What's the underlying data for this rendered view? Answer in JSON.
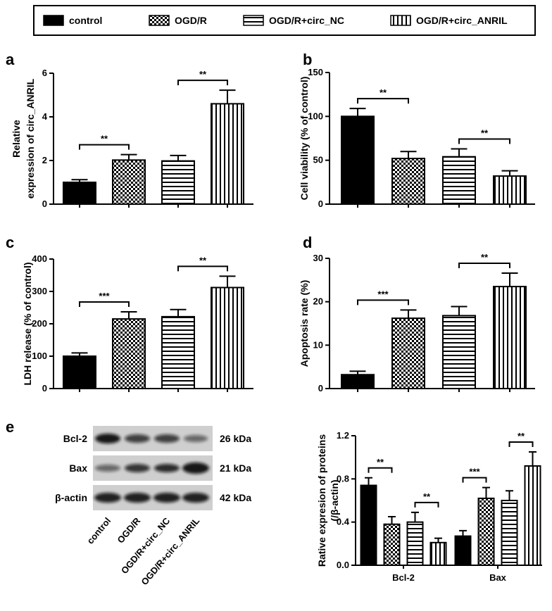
{
  "legend": [
    {
      "name": "control",
      "pattern": "solid"
    },
    {
      "name": "OGD/R",
      "pattern": "checker"
    },
    {
      "name": "OGD/R+circ_NC",
      "pattern": "hstripe"
    },
    {
      "name": "OGD/R+circ_ANRIL",
      "pattern": "vstripe"
    }
  ],
  "chart_data": [
    {
      "type": "bar",
      "panel": "a",
      "ylabel": [
        "Relative",
        "expression of circ_ANRIL"
      ],
      "values": [
        1.0,
        2.02,
        1.98,
        4.6
      ],
      "errors": [
        0.12,
        0.25,
        0.25,
        0.62
      ],
      "ylim": [
        0,
        6
      ],
      "yticks": [
        0,
        2,
        4,
        6
      ],
      "brackets": [
        {
          "from": 0,
          "to": 1,
          "label": "**"
        },
        {
          "from": 2,
          "to": 3,
          "label": "**"
        }
      ]
    },
    {
      "type": "bar",
      "panel": "b",
      "ylabel": [
        "Cell viability (% of control)"
      ],
      "values": [
        100,
        52,
        54,
        32
      ],
      "errors": [
        9,
        8,
        9,
        6
      ],
      "ylim": [
        0,
        150
      ],
      "yticks": [
        0,
        50,
        100,
        150
      ],
      "brackets": [
        {
          "from": 0,
          "to": 1,
          "label": "**"
        },
        {
          "from": 2,
          "to": 3,
          "label": "**"
        }
      ]
    },
    {
      "type": "bar",
      "panel": "c",
      "ylabel": [
        "LDH release (% of control)"
      ],
      "values": [
        100,
        215,
        222,
        312
      ],
      "errors": [
        10,
        22,
        22,
        35
      ],
      "ylim": [
        0,
        400
      ],
      "yticks": [
        0,
        100,
        200,
        300,
        400
      ],
      "brackets": [
        {
          "from": 0,
          "to": 1,
          "label": "***"
        },
        {
          "from": 2,
          "to": 3,
          "label": "**"
        }
      ]
    },
    {
      "type": "bar",
      "panel": "d",
      "ylabel": [
        "Apoptosis rate (%)"
      ],
      "values": [
        3.2,
        16.2,
        16.8,
        23.5
      ],
      "errors": [
        0.8,
        1.9,
        2.1,
        3.1
      ],
      "ylim": [
        0,
        30
      ],
      "yticks": [
        0,
        10,
        20,
        30
      ],
      "brackets": [
        {
          "from": 0,
          "to": 1,
          "label": "***"
        },
        {
          "from": 2,
          "to": 3,
          "label": "**"
        }
      ]
    },
    {
      "type": "grouped_bar",
      "ylabel": [
        "Rative expresion of proteins",
        "(/β-actin)"
      ],
      "categories": [
        "Bcl-2",
        "Bax"
      ],
      "series": [
        {
          "values": [
            0.74,
            0.27
          ],
          "errors": [
            0.07,
            0.05
          ]
        },
        {
          "values": [
            0.38,
            0.62
          ],
          "errors": [
            0.07,
            0.1
          ]
        },
        {
          "values": [
            0.4,
            0.6
          ],
          "errors": [
            0.09,
            0.09
          ]
        },
        {
          "values": [
            0.21,
            0.92
          ],
          "errors": [
            0.04,
            0.13
          ]
        }
      ],
      "ylim": [
        0,
        1.2
      ],
      "yticks": [
        {
          "value": 0,
          "label": "0.0"
        },
        0.4,
        0.8,
        1.2
      ],
      "brackets": [
        {
          "category": 0,
          "from": 0,
          "to": 1,
          "label": "**"
        },
        {
          "category": 0,
          "from": 2,
          "to": 3,
          "label": "**"
        },
        {
          "category": 1,
          "from": 0,
          "to": 1,
          "label": "***"
        },
        {
          "category": 1,
          "from": 2,
          "to": 3,
          "label": "**"
        }
      ]
    }
  ],
  "blot": {
    "panel": "e",
    "rows": [
      {
        "label": "Bcl-2",
        "size": "26 kDa"
      },
      {
        "label": "Bax",
        "size": "21 kDa"
      },
      {
        "label": "β-actin",
        "size": "42 kDa"
      }
    ],
    "lanes": [
      "control",
      "OGD/R",
      "OGD/R+circ_NC",
      "OGD/R+circ_ANRIL"
    ]
  }
}
